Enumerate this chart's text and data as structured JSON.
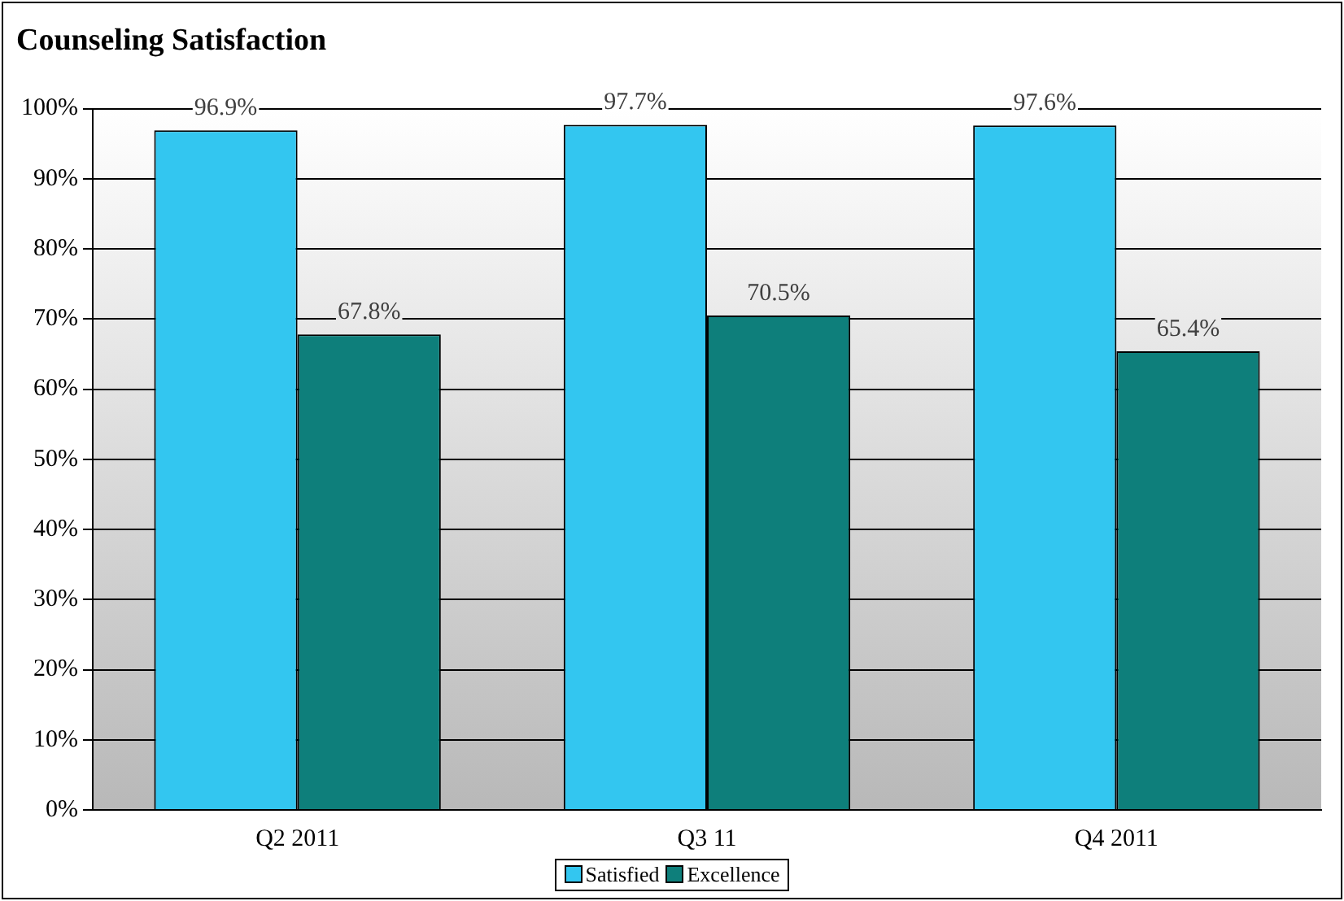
{
  "chart_data": {
    "type": "bar",
    "title": "Counseling Satisfaction",
    "categories": [
      "Q2 2011",
      "Q3 11",
      "Q4 2011"
    ],
    "series": [
      {
        "name": "Satisfied",
        "color": "#33c6f0",
        "values": [
          96.9,
          97.7,
          97.6
        ],
        "value_labels": [
          "96.9%",
          "97.7%",
          "97.6%"
        ]
      },
      {
        "name": "Excellence",
        "color": "#0e7f7b",
        "values": [
          67.8,
          70.5,
          65.4
        ],
        "value_labels": [
          "67.8%",
          "70.5%",
          "65.4%"
        ]
      }
    ],
    "ylim": [
      0,
      100
    ],
    "yticks": [
      {
        "value": 0,
        "label": "0%"
      },
      {
        "value": 10,
        "label": "10%"
      },
      {
        "value": 20,
        "label": "20%"
      },
      {
        "value": 30,
        "label": "30%"
      },
      {
        "value": 40,
        "label": "40%"
      },
      {
        "value": 50,
        "label": "50%"
      },
      {
        "value": 60,
        "label": "60%"
      },
      {
        "value": 70,
        "label": "70%"
      },
      {
        "value": 80,
        "label": "80%"
      },
      {
        "value": 90,
        "label": "90%"
      },
      {
        "value": 100,
        "label": "100%"
      }
    ],
    "grid": "y",
    "legend": "bottom"
  }
}
